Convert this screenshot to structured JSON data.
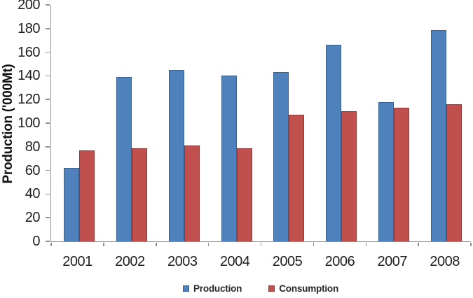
{
  "chart_data": {
    "type": "bar",
    "title": "",
    "xlabel": "",
    "ylabel": "Production ('000Mt)",
    "categories": [
      "2001",
      "2002",
      "2003",
      "2004",
      "2005",
      "2006",
      "2007",
      "2008"
    ],
    "series": [
      {
        "name": "Production",
        "color": "#4f81bd",
        "border_color": "#38618f",
        "values": [
          62,
          139,
          145,
          140,
          143,
          166,
          118,
          179
        ]
      },
      {
        "name": "Consumption",
        "color": "#c0504d",
        "border_color": "#943734",
        "values": [
          77,
          79,
          81,
          79,
          107,
          110,
          113,
          116
        ]
      }
    ],
    "ylim": [
      0,
      200
    ],
    "yticks": [
      0,
      20,
      40,
      60,
      80,
      100,
      120,
      140,
      160,
      180,
      200
    ],
    "grid": false,
    "legend_position": "bottom-center",
    "axis_color": "#8f8f8f",
    "tick_text_color": "#1f1f1f",
    "background": "#ffffff"
  }
}
